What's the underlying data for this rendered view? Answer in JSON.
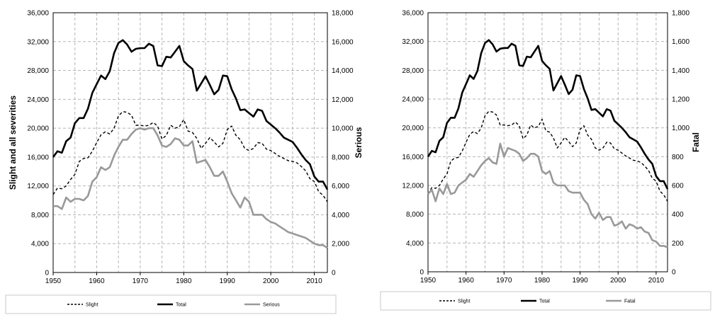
{
  "chart_data": [
    {
      "type": "line",
      "x_range": [
        1950,
        2013
      ],
      "x_ticks": [
        "1950",
        "1960",
        "1970",
        "1980",
        "1990",
        "2000",
        "2010"
      ],
      "left_axis": {
        "label": "Slight and all severities",
        "ylim": [
          0,
          36000
        ],
        "ticks": [
          "0",
          "4,000",
          "8,000",
          "12,000",
          "16,000",
          "20,000",
          "24,000",
          "28,000",
          "32,000",
          "36,000"
        ]
      },
      "right_axis": {
        "label": "Serious",
        "ylim": [
          0,
          18000
        ],
        "ticks": [
          "0",
          "2,000",
          "4,000",
          "6,000",
          "8,000",
          "10,000",
          "12,000",
          "14,000",
          "16,000",
          "18,000"
        ]
      },
      "grid": true,
      "legend_position": "bottom",
      "series": [
        {
          "name": "Slight",
          "axis": "left",
          "style": "dashed",
          "color": "#000000",
          "values": [
            10800,
            11700,
            11600,
            12000,
            12900,
            13600,
            15400,
            15800,
            15900,
            16800,
            18000,
            19100,
            19500,
            19200,
            20000,
            21700,
            22300,
            22200,
            21800,
            20400,
            20400,
            20300,
            20400,
            20800,
            20300,
            18500,
            19000,
            20400,
            20000,
            20200,
            21200,
            19600,
            19400,
            18600,
            17200,
            17900,
            18700,
            18100,
            17400,
            17900,
            19800,
            20300,
            19000,
            18400,
            17200,
            16900,
            17200,
            18000,
            17900,
            17100,
            16900,
            16500,
            16100,
            15800,
            15500,
            15400,
            15200,
            14700,
            14100,
            13000,
            12600,
            11200,
            10700,
            9800
          ]
        },
        {
          "name": "Total",
          "axis": "left",
          "style": "solid",
          "color": "#000000",
          "values": [
            16000,
            16800,
            16600,
            18200,
            18700,
            20700,
            21400,
            21400,
            22700,
            24900,
            26100,
            27300,
            26800,
            27900,
            30400,
            31800,
            32200,
            31600,
            30600,
            31000,
            31100,
            31100,
            31700,
            31400,
            28700,
            28600,
            29900,
            29800,
            30600,
            31400,
            29300,
            28700,
            28200,
            25200,
            26200,
            27200,
            26000,
            24700,
            25300,
            27300,
            27200,
            25400,
            24100,
            22500,
            22600,
            22100,
            21600,
            22600,
            22400,
            21000,
            20500,
            20000,
            19400,
            18700,
            18400,
            18100,
            17300,
            16400,
            15600,
            15000,
            13300,
            12600,
            12600,
            11500
          ]
        },
        {
          "name": "Serious",
          "axis": "right",
          "style": "solid",
          "color": "#999999",
          "values": [
            4600,
            4600,
            4400,
            5200,
            4900,
            5100,
            5100,
            5000,
            5300,
            6300,
            6600,
            7300,
            7100,
            7300,
            8100,
            8700,
            9200,
            9200,
            9600,
            9900,
            10000,
            9900,
            10000,
            10000,
            9500,
            8800,
            8700,
            8900,
            9300,
            9200,
            8800,
            8800,
            9100,
            7600,
            7700,
            7800,
            7300,
            6700,
            6700,
            7000,
            6300,
            5500,
            5000,
            4500,
            5200,
            4900,
            4000,
            4000,
            4000,
            3700,
            3500,
            3400,
            3200,
            3000,
            2800,
            2700,
            2600,
            2500,
            2400,
            2200,
            2000,
            1900,
            1900,
            1700
          ]
        }
      ]
    },
    {
      "type": "line",
      "x_range": [
        1950,
        2013
      ],
      "x_ticks": [
        "1950",
        "1960",
        "1970",
        "1980",
        "1990",
        "2000",
        "2010"
      ],
      "left_axis": {
        "label": "",
        "ylim": [
          0,
          36000
        ],
        "ticks": [
          "0",
          "4,000",
          "8,000",
          "12,000",
          "16,000",
          "20,000",
          "24,000",
          "28,000",
          "32,000",
          "36,000"
        ]
      },
      "right_axis": {
        "label": "Fatal",
        "ylim": [
          0,
          1800
        ],
        "ticks": [
          "0",
          "200",
          "400",
          "600",
          "800",
          "1,000",
          "1,200",
          "1,400",
          "1,600",
          "1,800"
        ]
      },
      "grid": true,
      "legend_position": "bottom",
      "series": [
        {
          "name": "Slight",
          "axis": "left",
          "style": "dashed",
          "color": "#000000",
          "values": [
            10800,
            11700,
            11600,
            12000,
            12900,
            13600,
            15400,
            15800,
            15900,
            16800,
            18000,
            19100,
            19500,
            19200,
            20000,
            21700,
            22300,
            22200,
            21800,
            20400,
            20400,
            20300,
            20400,
            20800,
            20300,
            18500,
            19000,
            20400,
            20000,
            20200,
            21200,
            19600,
            19400,
            18600,
            17200,
            17900,
            18700,
            18100,
            17400,
            17900,
            19800,
            20300,
            19000,
            18400,
            17200,
            16900,
            17200,
            18000,
            17900,
            17100,
            16900,
            16500,
            16100,
            15800,
            15500,
            15400,
            15200,
            14700,
            14100,
            13000,
            12600,
            11200,
            10700,
            9800
          ]
        },
        {
          "name": "Total",
          "axis": "left",
          "style": "solid",
          "color": "#000000",
          "values": [
            16000,
            16800,
            16600,
            18200,
            18700,
            20700,
            21400,
            21400,
            22700,
            24900,
            26100,
            27300,
            26800,
            27900,
            30400,
            31800,
            32200,
            31600,
            30600,
            31000,
            31100,
            31100,
            31700,
            31400,
            28700,
            28600,
            29900,
            29800,
            30600,
            31400,
            29300,
            28700,
            28200,
            25200,
            26200,
            27200,
            26000,
            24700,
            25300,
            27300,
            27200,
            25400,
            24100,
            22500,
            22600,
            22100,
            21600,
            22600,
            22400,
            21000,
            20500,
            20000,
            19400,
            18700,
            18400,
            18100,
            17300,
            16400,
            15600,
            15000,
            13300,
            12600,
            12600,
            11500
          ]
        },
        {
          "name": "Fatal",
          "axis": "right",
          "style": "solid",
          "color": "#999999",
          "values": [
            540,
            570,
            490,
            580,
            540,
            610,
            540,
            550,
            600,
            620,
            640,
            680,
            660,
            700,
            740,
            770,
            790,
            760,
            750,
            890,
            800,
            860,
            850,
            840,
            820,
            770,
            790,
            820,
            820,
            800,
            700,
            680,
            700,
            620,
            600,
            600,
            600,
            560,
            550,
            550,
            550,
            500,
            470,
            400,
            370,
            410,
            360,
            380,
            380,
            320,
            330,
            350,
            300,
            330,
            320,
            300,
            310,
            280,
            270,
            220,
            210,
            180,
            180,
            170
          ]
        }
      ]
    }
  ]
}
